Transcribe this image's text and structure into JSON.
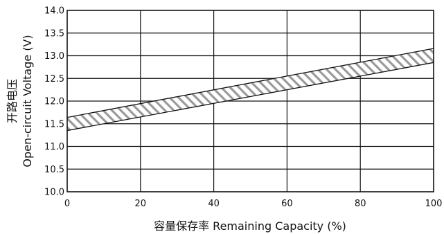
{
  "chart_data": {
    "type": "area",
    "title": "",
    "xlabel": "容量保存率 Remaining Capacity (%)",
    "ylabel_cn": "开路电压",
    "ylabel_en": "Open-circuit Voltage (V)",
    "xlim": [
      0,
      100
    ],
    "ylim": [
      10.0,
      14.0
    ],
    "x_ticks": [
      0,
      20,
      40,
      60,
      80,
      100
    ],
    "y_ticks": [
      10.0,
      10.5,
      11.0,
      11.5,
      12.0,
      12.5,
      13.0,
      13.5,
      14.0
    ],
    "x_tick_labels": [
      "0",
      "20",
      "40",
      "60",
      "80",
      "100"
    ],
    "y_tick_labels": [
      "10.0",
      "10.5",
      "11.0",
      "11.5",
      "12.0",
      "12.5",
      "13.0",
      "13.5",
      "14.0"
    ],
    "grid": true,
    "band": {
      "x": [
        0,
        100
      ],
      "upper": [
        11.64,
        13.16
      ],
      "lower": [
        11.35,
        12.85
      ],
      "fill": "hatched"
    }
  },
  "colors": {
    "axis": "#111111",
    "grid": "#111111",
    "hatch": "#9a9a9a"
  }
}
